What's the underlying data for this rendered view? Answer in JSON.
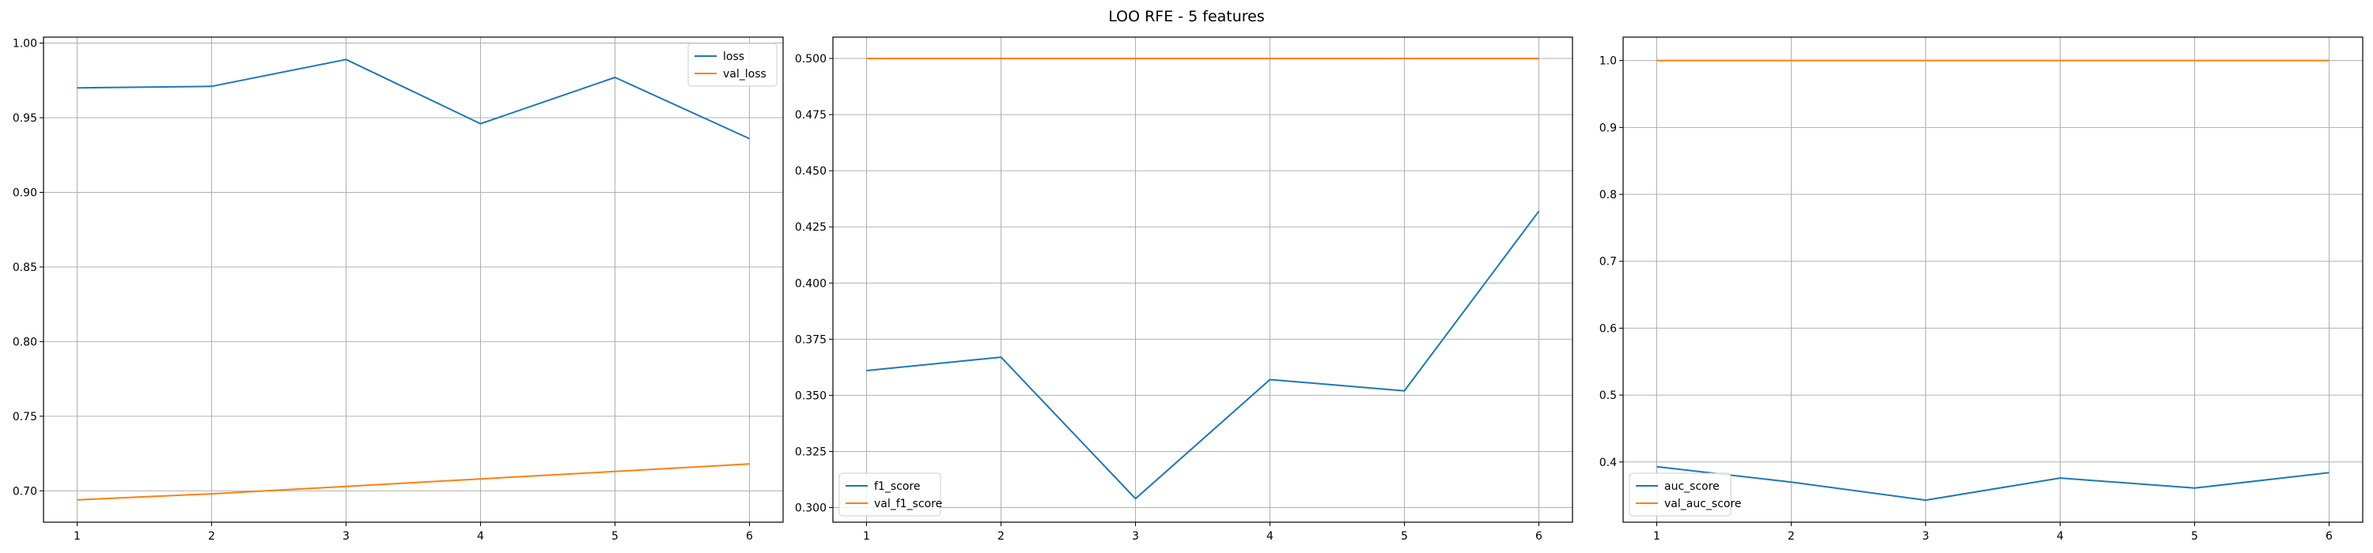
{
  "figure": {
    "title": "LOO RFE - 5 features"
  },
  "colors": {
    "blue": "#1f77b4",
    "orange": "#ff7f0e"
  },
  "chart_data": [
    {
      "type": "line",
      "title": "",
      "xlabel": "",
      "ylabel": "",
      "x": [
        1,
        2,
        3,
        4,
        5,
        6
      ],
      "xlim": [
        0.75,
        6.25
      ],
      "ylim": [
        0.679,
        1.004
      ],
      "yticks": [
        0.7,
        0.75,
        0.8,
        0.85,
        0.9,
        0.95,
        1.0
      ],
      "ytick_labels": [
        "0.70",
        "0.75",
        "0.80",
        "0.85",
        "0.90",
        "0.95",
        "1.00"
      ],
      "grid": true,
      "legend": "upper right",
      "series": [
        {
          "name": "loss",
          "color": "#1f77b4",
          "values": [
            0.97,
            0.971,
            0.989,
            0.946,
            0.977,
            0.936
          ]
        },
        {
          "name": "val_loss",
          "color": "#ff7f0e",
          "values": [
            0.694,
            0.698,
            0.703,
            0.708,
            0.713,
            0.718
          ]
        }
      ]
    },
    {
      "type": "line",
      "title": "",
      "xlabel": "",
      "ylabel": "",
      "x": [
        1,
        2,
        3,
        4,
        5,
        6
      ],
      "xlim": [
        0.75,
        6.25
      ],
      "ylim": [
        0.2935,
        0.5095
      ],
      "yticks": [
        0.3,
        0.325,
        0.35,
        0.375,
        0.4,
        0.425,
        0.45,
        0.475,
        0.5
      ],
      "ytick_labels": [
        "0.300",
        "0.325",
        "0.350",
        "0.375",
        "0.400",
        "0.425",
        "0.450",
        "0.475",
        "0.500"
      ],
      "grid": true,
      "legend": "lower left",
      "series": [
        {
          "name": "f1_score",
          "color": "#1f77b4",
          "values": [
            0.361,
            0.367,
            0.304,
            0.357,
            0.352,
            0.432
          ]
        },
        {
          "name": "val_f1_score",
          "color": "#ff7f0e",
          "values": [
            0.5,
            0.5,
            0.5,
            0.5,
            0.5,
            0.5
          ]
        }
      ]
    },
    {
      "type": "line",
      "title": "",
      "xlabel": "",
      "ylabel": "",
      "x": [
        1,
        2,
        3,
        4,
        5,
        6
      ],
      "xlim": [
        0.75,
        6.25
      ],
      "ylim": [
        0.31,
        1.035
      ],
      "yticks": [
        0.4,
        0.5,
        0.6,
        0.7,
        0.8,
        0.9,
        1.0
      ],
      "ytick_labels": [
        "0.4",
        "0.5",
        "0.6",
        "0.7",
        "0.8",
        "0.9",
        "1.0"
      ],
      "grid": true,
      "legend": "lower left",
      "series": [
        {
          "name": "auc_score",
          "color": "#1f77b4",
          "values": [
            0.393,
            0.37,
            0.343,
            0.376,
            0.361,
            0.384
          ]
        },
        {
          "name": "val_auc_score",
          "color": "#ff7f0e",
          "values": [
            1.0,
            1.0,
            1.0,
            1.0,
            1.0,
            1.0
          ]
        }
      ]
    }
  ]
}
